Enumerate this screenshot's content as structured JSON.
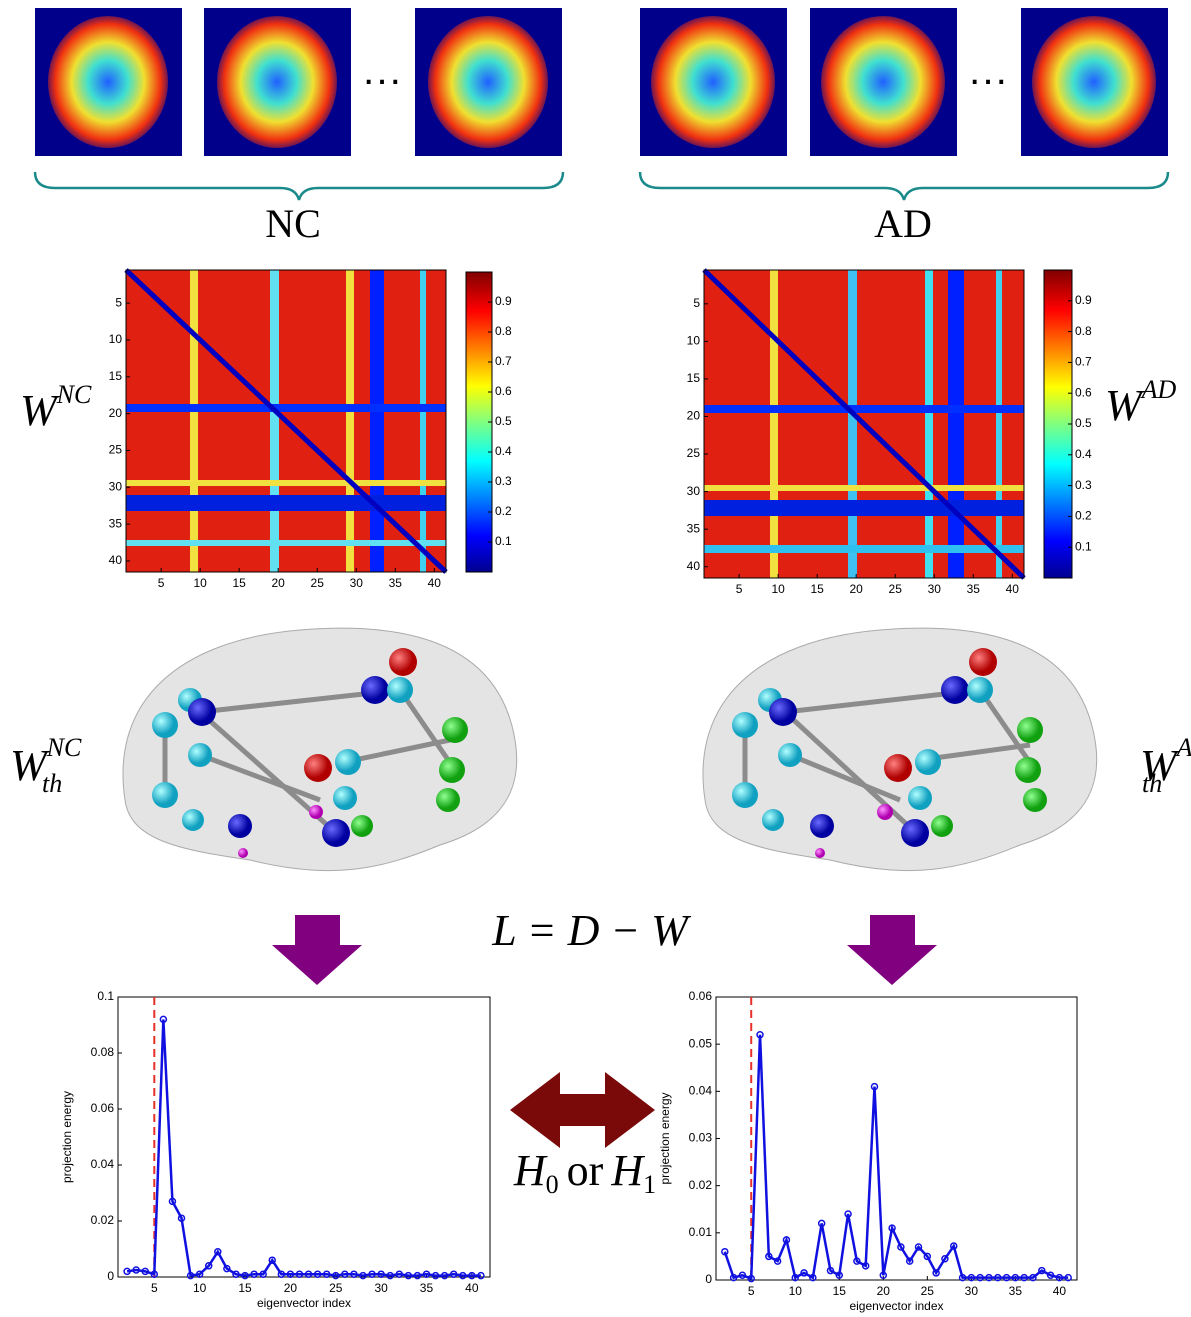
{
  "groups": [
    {
      "label": "NC",
      "ellipsis": "···",
      "matrix_symbol": "W",
      "matrix_sup": "NC",
      "graph_symbol": "W",
      "graph_sub": "th",
      "graph_sup": "NC"
    },
    {
      "label": "AD",
      "ellipsis": "···",
      "matrix_symbol": "W",
      "matrix_sup": "AD",
      "graph_symbol": "W",
      "graph_sub": "th",
      "graph_sup": "AD"
    }
  ],
  "formula": "L = D − W",
  "hypothesis": {
    "h0": "H",
    "h0_sub": "0",
    "or": "or",
    "h1": "H",
    "h1_sub": "1"
  },
  "heatmaps": [
    {
      "xlim": [
        0.5,
        41.5
      ],
      "ylim": [
        0.5,
        41.5
      ],
      "xticks": [
        5,
        10,
        15,
        20,
        25,
        30,
        35,
        40
      ],
      "yticks": [
        5,
        10,
        15,
        20,
        25,
        30,
        35,
        40
      ],
      "clim": [
        0,
        1
      ],
      "colorbar_ticks": [
        0.1,
        0.2,
        0.3,
        0.4,
        0.5,
        0.6,
        0.7,
        0.8,
        0.9
      ]
    },
    {
      "xlim": [
        0.5,
        41.5
      ],
      "ylim": [
        0.5,
        41.5
      ],
      "xticks": [
        5,
        10,
        15,
        20,
        25,
        30,
        35,
        40
      ],
      "yticks": [
        5,
        10,
        15,
        20,
        25,
        30,
        35,
        40
      ],
      "clim": [
        0,
        1
      ],
      "colorbar_ticks": [
        0.1,
        0.2,
        0.3,
        0.4,
        0.5,
        0.6,
        0.7,
        0.8,
        0.9
      ]
    }
  ],
  "chart_data": [
    {
      "type": "line",
      "xlabel": "eigenvector index",
      "ylabel": "projection energy",
      "threshold_x": 5,
      "threshold_color": "#e8302a",
      "x": [
        2,
        3,
        4,
        5,
        6,
        7,
        8,
        9,
        10,
        11,
        12,
        13,
        14,
        15,
        16,
        17,
        18,
        19,
        20,
        21,
        22,
        23,
        24,
        25,
        26,
        27,
        28,
        29,
        30,
        31,
        32,
        33,
        34,
        35,
        36,
        37,
        38,
        39,
        40,
        41
      ],
      "series": [
        {
          "name": "NC",
          "color": "#1010e0",
          "values": [
            0.002,
            0.0025,
            0.002,
            0.001,
            0.092,
            0.027,
            0.021,
            0.0005,
            0.001,
            0.004,
            0.009,
            0.003,
            0.001,
            0.0005,
            0.001,
            0.001,
            0.006,
            0.001,
            0.001,
            0.001,
            0.001,
            0.001,
            0.001,
            0.0005,
            0.001,
            0.001,
            0.0005,
            0.001,
            0.001,
            0.0005,
            0.001,
            0.0005,
            0.0005,
            0.001,
            0.0005,
            0.0005,
            0.001,
            0.0005,
            0.0005,
            0.0005
          ]
        }
      ],
      "xlim": [
        1,
        42
      ],
      "ylim": [
        0,
        0.1
      ],
      "xticks": [
        5,
        10,
        15,
        20,
        25,
        30,
        35,
        40
      ],
      "yticks": [
        0,
        0.02,
        0.04,
        0.06,
        0.08,
        0.1
      ]
    },
    {
      "type": "line",
      "xlabel": "eigenvector index",
      "ylabel": "projection energy",
      "threshold_x": 5,
      "threshold_color": "#e8302a",
      "x": [
        2,
        3,
        4,
        5,
        6,
        7,
        8,
        9,
        10,
        11,
        12,
        13,
        14,
        15,
        16,
        17,
        18,
        19,
        20,
        21,
        22,
        23,
        24,
        25,
        26,
        27,
        28,
        29,
        30,
        31,
        32,
        33,
        34,
        35,
        36,
        37,
        38,
        39,
        40,
        41
      ],
      "series": [
        {
          "name": "AD",
          "color": "#1010e0",
          "values": [
            0.006,
            0.0005,
            0.001,
            0.0003,
            0.052,
            0.005,
            0.004,
            0.0085,
            0.0005,
            0.0015,
            0.0005,
            0.012,
            0.002,
            0.001,
            0.014,
            0.004,
            0.003,
            0.041,
            0.001,
            0.011,
            0.007,
            0.004,
            0.007,
            0.005,
            0.0015,
            0.0045,
            0.0072,
            0.0005,
            0.0005,
            0.0005,
            0.0005,
            0.0005,
            0.0005,
            0.0005,
            0.0005,
            0.0005,
            0.002,
            0.001,
            0.0005,
            0.0005
          ]
        }
      ],
      "xlim": [
        1,
        42
      ],
      "ylim": [
        0,
        0.06
      ],
      "xticks": [
        5,
        10,
        15,
        20,
        25,
        30,
        35,
        40
      ],
      "yticks": [
        0,
        0.01,
        0.02,
        0.03,
        0.04,
        0.05,
        0.06
      ]
    }
  ]
}
